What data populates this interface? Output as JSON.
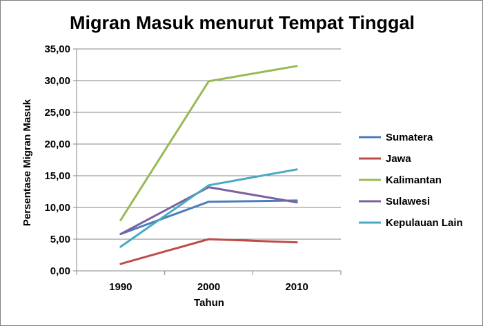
{
  "chart_data": {
    "type": "line",
    "title": "Migran Masuk menurut Tempat Tinggal",
    "xlabel": "Tahun",
    "ylabel": "Persentase Migran Masuk",
    "categories": [
      "1990",
      "2000",
      "2010"
    ],
    "ylim": [
      0,
      35
    ],
    "ytick_labels": [
      "0,00",
      "5,00",
      "10,00",
      "15,00",
      "20,00",
      "25,00",
      "30,00",
      "35,00"
    ],
    "grid": true,
    "legend_position": "right",
    "series": [
      {
        "name": "Sumatera",
        "color": "#4a7ebb",
        "values": [
          5.8,
          10.9,
          11.1
        ]
      },
      {
        "name": "Jawa",
        "color": "#be4b48",
        "values": [
          1.1,
          5.0,
          4.5
        ]
      },
      {
        "name": "Kalimantan",
        "color": "#98b954",
        "values": [
          8.0,
          29.9,
          32.3
        ]
      },
      {
        "name": "Sulawesi",
        "color": "#7d60a0",
        "values": [
          5.8,
          13.2,
          10.8
        ]
      },
      {
        "name": "Kepulauan Lain",
        "color": "#46aac5",
        "values": [
          3.8,
          13.5,
          16.0
        ]
      }
    ]
  }
}
